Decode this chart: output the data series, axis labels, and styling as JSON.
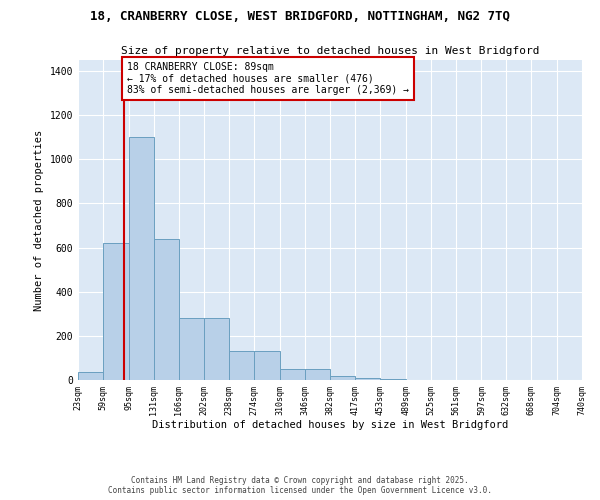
{
  "title1": "18, CRANBERRY CLOSE, WEST BRIDGFORD, NOTTINGHAM, NG2 7TQ",
  "title2": "Size of property relative to detached houses in West Bridgford",
  "xlabel": "Distribution of detached houses by size in West Bridgford",
  "ylabel": "Number of detached properties",
  "bin_labels": [
    "23sqm",
    "59sqm",
    "95sqm",
    "131sqm",
    "166sqm",
    "202sqm",
    "238sqm",
    "274sqm",
    "310sqm",
    "346sqm",
    "382sqm",
    "417sqm",
    "453sqm",
    "489sqm",
    "525sqm",
    "561sqm",
    "597sqm",
    "632sqm",
    "668sqm",
    "704sqm",
    "740sqm"
  ],
  "bar_heights": [
    35,
    620,
    1100,
    640,
    280,
    280,
    130,
    130,
    50,
    50,
    20,
    10,
    5,
    0,
    0,
    0,
    0,
    0,
    0,
    0
  ],
  "bar_color": "#b8d0e8",
  "bar_edge_color": "#6a9fc0",
  "property_line_x": 89,
  "annotation_line1": "18 CRANBERRY CLOSE: 89sqm",
  "annotation_line2": "← 17% of detached houses are smaller (476)",
  "annotation_line3": "83% of semi-detached houses are larger (2,369) →",
  "vline_color": "#cc0000",
  "annotation_box_color": "#cc0000",
  "background_color": "#dce8f5",
  "ylim": [
    0,
    1450
  ],
  "bin_label_vals": [
    23,
    59,
    95,
    131,
    166,
    202,
    238,
    274,
    310,
    346,
    382,
    417,
    453,
    489,
    525,
    561,
    597,
    632,
    668,
    704,
    740
  ],
  "footer1": "Contains HM Land Registry data © Crown copyright and database right 2025.",
  "footer2": "Contains public sector information licensed under the Open Government Licence v3.0."
}
